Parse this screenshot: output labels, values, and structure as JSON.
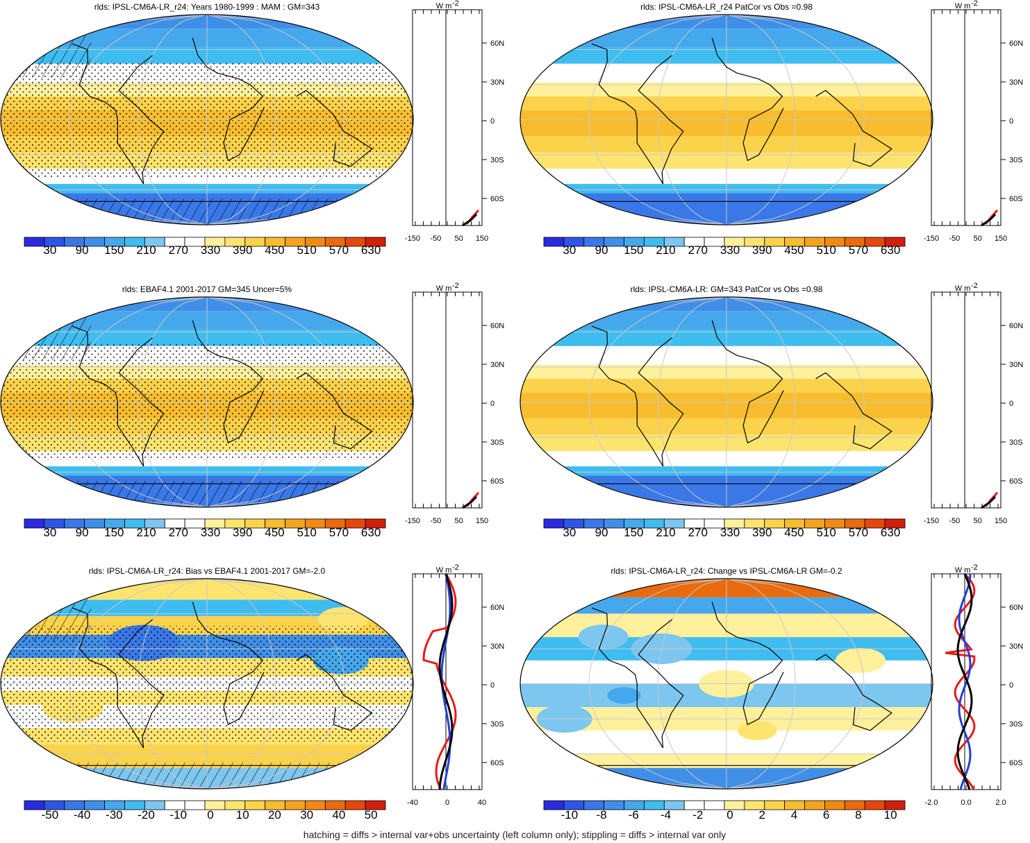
{
  "footnote": "hatching = diffs > internal var+obs uncertainty (left column only); stippling = diffs > internal var only",
  "zonal_unit": "W m",
  "zonal_unit_exp": "-2",
  "lat_labels": [
    "60N",
    "30N",
    "0",
    "30S",
    "60S"
  ],
  "colors": {
    "abs_scale": [
      "#2b2ae0",
      "#2f55e6",
      "#3a78e8",
      "#3f8fe8",
      "#45a8ec",
      "#3fbcf0",
      "#7cc6ef",
      "#ffffff",
      "#ffffff",
      "#fff09c",
      "#fde46f",
      "#fbd24b",
      "#f8bd2e",
      "#f5a31e",
      "#f08a13",
      "#ea6b0e",
      "#e4480a",
      "#d21f0a"
    ],
    "diff_scale": [
      "#2b2ae0",
      "#2f55e6",
      "#3a78e8",
      "#3f8fe8",
      "#45a8ec",
      "#3fbcf0",
      "#7cc6ef",
      "#ffffff",
      "#ffffff",
      "#fff09c",
      "#fde46f",
      "#fbd24b",
      "#f8bd2e",
      "#f5a31e",
      "#f08a13",
      "#ea6b0e",
      "#e4480a",
      "#d21f0a"
    ],
    "line_model": "#000000",
    "line_obs": "#e8191a",
    "line_ref": "#1f3fdc"
  },
  "panels": [
    {
      "title": "rlds: IPSL-CM6A-LR_r24: Years 1980-1999 : MAM : GM=343",
      "colorbar_labels": [
        "30",
        "90",
        "150",
        "210",
        "270",
        "330",
        "390",
        "450",
        "510",
        "570",
        "630"
      ],
      "zonal_ticks": [
        "-150",
        "-50",
        "50",
        "150"
      ]
    },
    {
      "title": "rlds: IPSL-CM6A-LR_r24 PatCor vs Obs =0.98",
      "colorbar_labels": [
        "30",
        "90",
        "150",
        "210",
        "270",
        "330",
        "390",
        "450",
        "510",
        "570",
        "630"
      ],
      "zonal_ticks": [
        "-150",
        "-50",
        "50",
        "150"
      ]
    },
    {
      "title": "rlds: EBAF4.1 2001-2017 GM=345 Uncer=5%",
      "colorbar_labels": [
        "30",
        "90",
        "150",
        "210",
        "270",
        "330",
        "390",
        "450",
        "510",
        "570",
        "630"
      ],
      "zonal_ticks": [
        "-150",
        "-50",
        "50",
        "150"
      ]
    },
    {
      "title": "rlds: IPSL-CM6A-LR: GM=343 PatCor vs Obs =0.98",
      "colorbar_labels": [
        "30",
        "90",
        "150",
        "210",
        "270",
        "330",
        "390",
        "450",
        "510",
        "570",
        "630"
      ],
      "zonal_ticks": [
        "-150",
        "-50",
        "50",
        "150"
      ]
    },
    {
      "title": "rlds: IPSL-CM6A-LR_r24: Bias vs EBAF4.1 2001-2017 GM=-2.0",
      "colorbar_labels": [
        "-50",
        "-40",
        "-30",
        "-20",
        "-10",
        "0",
        "10",
        "20",
        "30",
        "40",
        "50"
      ],
      "zonal_ticks": [
        "-40",
        "0",
        "40"
      ]
    },
    {
      "title": "rlds: IPSL-CM6A-LR_r24: Change vs IPSL-CM6A-LR GM=-0.2",
      "colorbar_labels": [
        "-10",
        "-8",
        "-6",
        "-4",
        "-2",
        "0",
        "2",
        "4",
        "6",
        "8",
        "10"
      ],
      "zonal_ticks": [
        "-2.0",
        "0.0",
        "2.0"
      ]
    }
  ]
}
